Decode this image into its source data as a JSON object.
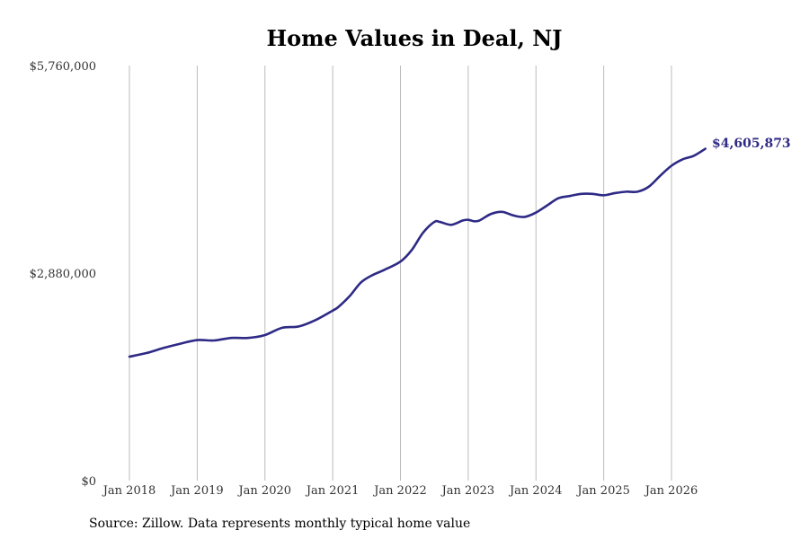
{
  "chart_data": {
    "type": "line",
    "title": "Home Values in Deal, NJ",
    "source": "Source: Zillow. Data represents monthly typical home value",
    "xlabel": "",
    "ylabel": "",
    "x_range": [
      "2017-12",
      "2026-09"
    ],
    "ylim": [
      0,
      5760000
    ],
    "y_ticks": [
      {
        "value": 0,
        "label": "$0"
      },
      {
        "value": 2880000,
        "label": "$2,880,000"
      },
      {
        "value": 5760000,
        "label": "$5,760,000"
      }
    ],
    "x_ticks": [
      {
        "date": "2018-01",
        "label": "Jan 2018"
      },
      {
        "date": "2019-01",
        "label": "Jan 2019"
      },
      {
        "date": "2020-01",
        "label": "Jan 2020"
      },
      {
        "date": "2021-01",
        "label": "Jan 2021"
      },
      {
        "date": "2022-01",
        "label": "Jan 2022"
      },
      {
        "date": "2023-01",
        "label": "Jan 2023"
      },
      {
        "date": "2024-01",
        "label": "Jan 2024"
      },
      {
        "date": "2025-01",
        "label": "Jan 2025"
      },
      {
        "date": "2026-01",
        "label": "Jan 2026"
      }
    ],
    "vertical_grid": true,
    "horizontal_grid": false,
    "line_color": "#2e2a85",
    "grid_color": "#bbbbbb",
    "end_label": "$4,605,873",
    "series": [
      {
        "name": "",
        "points": [
          [
            "2018-01",
            1720000
          ],
          [
            "2018-04",
            1770000
          ],
          [
            "2018-07",
            1840000
          ],
          [
            "2018-10",
            1900000
          ],
          [
            "2019-01",
            1950000
          ],
          [
            "2019-04",
            1945000
          ],
          [
            "2019-07",
            1980000
          ],
          [
            "2019-10",
            1980000
          ],
          [
            "2020-01",
            2020000
          ],
          [
            "2020-04",
            2120000
          ],
          [
            "2020-07",
            2140000
          ],
          [
            "2020-10",
            2230000
          ],
          [
            "2021-01",
            2360000
          ],
          [
            "2021-02",
            2410000
          ],
          [
            "2021-04",
            2560000
          ],
          [
            "2021-06",
            2750000
          ],
          [
            "2021-08",
            2850000
          ],
          [
            "2021-10",
            2920000
          ],
          [
            "2022-01",
            3040000
          ],
          [
            "2022-03",
            3200000
          ],
          [
            "2022-05",
            3440000
          ],
          [
            "2022-07",
            3590000
          ],
          [
            "2022-08",
            3590000
          ],
          [
            "2022-10",
            3550000
          ],
          [
            "2022-12",
            3610000
          ],
          [
            "2023-01",
            3620000
          ],
          [
            "2023-02",
            3600000
          ],
          [
            "2023-03",
            3610000
          ],
          [
            "2023-05",
            3700000
          ],
          [
            "2023-07",
            3730000
          ],
          [
            "2023-09",
            3680000
          ],
          [
            "2023-11",
            3660000
          ],
          [
            "2024-01",
            3720000
          ],
          [
            "2024-03",
            3820000
          ],
          [
            "2024-05",
            3920000
          ],
          [
            "2024-07",
            3950000
          ],
          [
            "2024-09",
            3980000
          ],
          [
            "2024-11",
            3980000
          ],
          [
            "2025-01",
            3960000
          ],
          [
            "2025-03",
            3990000
          ],
          [
            "2025-05",
            4010000
          ],
          [
            "2025-07",
            4010000
          ],
          [
            "2025-09",
            4080000
          ],
          [
            "2025-11",
            4230000
          ],
          [
            "2026-01",
            4370000
          ],
          [
            "2026-03",
            4460000
          ],
          [
            "2026-05",
            4510000
          ],
          [
            "2026-07",
            4605873
          ]
        ]
      }
    ]
  }
}
